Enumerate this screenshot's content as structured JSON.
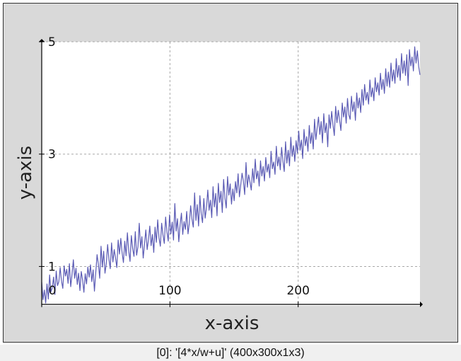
{
  "window": {
    "status_text": "[0]: '[4*x/w+u]' (400x300x1x3)"
  },
  "colors": {
    "series": "#5a5ab4",
    "grid": "#a8a8a8",
    "frame_bg": "#d9d9d9",
    "plot_bg": "#ffffff"
  },
  "chart_data": {
    "type": "line",
    "title": "",
    "xlabel": "x-axis",
    "ylabel": "y-axis",
    "xlim": [
      0,
      295
    ],
    "ylim": [
      0.3,
      5
    ],
    "x_ticks": [
      {
        "value": 0,
        "label": "0"
      },
      {
        "value": 100,
        "label": "100"
      },
      {
        "value": 200,
        "label": "200"
      }
    ],
    "y_ticks": [
      {
        "value": 1,
        "label": "1"
      },
      {
        "value": 3,
        "label": "3"
      },
      {
        "value": 5,
        "label": "5"
      }
    ],
    "grid": true,
    "series": [
      {
        "values": [
          0.72,
          0.41,
          0.58,
          0.35,
          0.69,
          0.42,
          0.85,
          0.55,
          0.62,
          0.81,
          0.5,
          0.92,
          0.66,
          0.73,
          0.98,
          0.74,
          0.61,
          1.01,
          0.83,
          0.95,
          0.7,
          1.05,
          0.64,
          0.86,
          1.12,
          0.79,
          0.97,
          0.68,
          0.88,
          0.57,
          0.91,
          0.76,
          0.54,
          0.87,
          0.69,
          0.99,
          0.81,
          1.03,
          0.73,
          0.94,
          0.56,
          0.89,
          1.21,
          1.04,
          0.79,
          1.36,
          0.99,
          1.27,
          0.88,
          1.05,
          1.39,
          1.13,
          0.96,
          1.42,
          1.08,
          1.3,
          1.15,
          0.98,
          1.47,
          1.22,
          1.5,
          1.24,
          1.07,
          1.45,
          1.19,
          1.6,
          1.28,
          1.09,
          1.55,
          1.32,
          1.18,
          1.62,
          1.2,
          1.35,
          1.77,
          1.33,
          1.53,
          1.15,
          1.4,
          1.65,
          1.3,
          1.48,
          1.72,
          1.37,
          1.57,
          1.25,
          1.7,
          1.43,
          1.83,
          1.51,
          1.36,
          1.77,
          1.56,
          1.41,
          1.88,
          1.62,
          1.45,
          1.92,
          1.58,
          1.79,
          1.47,
          2.12,
          1.63,
          1.85,
          1.44,
          1.74,
          1.95,
          1.57,
          1.8,
          1.66,
          1.98,
          1.58,
          1.77,
          2.08,
          1.84,
          1.7,
          2.31,
          1.82,
          2.1,
          1.72,
          2.26,
          1.94,
          1.78,
          2.21,
          1.86,
          2.05,
          2.36,
          2.0,
          2.18,
          1.87,
          2.42,
          2.06,
          2.3,
          1.9,
          2.48,
          2.14,
          2.34,
          1.96,
          2.55,
          2.22,
          2.04,
          2.6,
          2.27,
          2.47,
          2.11,
          2.38,
          2.17,
          2.51,
          2.31,
          2.65,
          2.24,
          2.45,
          2.66,
          2.52,
          2.28,
          2.85,
          2.41,
          2.63,
          2.5,
          2.36,
          2.74,
          2.49,
          2.91,
          2.56,
          2.7,
          2.43,
          2.88,
          2.61,
          2.78,
          2.52,
          2.94,
          2.68,
          2.82,
          2.58,
          3.05,
          2.74,
          2.86,
          2.64,
          3.14,
          2.79,
          2.95,
          2.72,
          3.12,
          2.88,
          2.69,
          3.22,
          2.84,
          3.07,
          2.79,
          3.3,
          2.96,
          3.15,
          2.87,
          3.24,
          3.02,
          3.41,
          3.07,
          3.25,
          2.92,
          3.44,
          3.15,
          3.31,
          3.05,
          3.51,
          3.19,
          3.38,
          3.09,
          3.62,
          3.26,
          3.47,
          3.66,
          3.35,
          3.58,
          3.2,
          3.72,
          3.38,
          3.55,
          3.13,
          3.7,
          3.46,
          3.76,
          3.52,
          3.33,
          3.85,
          3.56,
          3.78,
          3.6,
          3.42,
          3.91,
          3.66,
          3.84,
          3.55,
          3.99,
          3.7,
          3.62,
          4.03,
          3.76,
          3.93,
          3.6,
          4.09,
          3.82,
          4.0,
          3.74,
          4.15,
          3.87,
          4.24,
          3.96,
          4.1,
          3.89,
          4.32,
          4.02,
          4.18,
          3.95,
          4.36,
          4.11,
          4.27,
          4.05,
          4.44,
          4.15,
          4.33,
          4.08,
          4.52,
          4.21,
          4.46,
          4.19,
          4.62,
          4.3,
          4.5,
          4.26,
          4.7,
          4.37,
          4.58,
          4.31,
          4.79,
          4.44,
          4.66,
          4.4,
          4.77,
          4.22,
          4.86,
          4.57,
          4.73,
          4.48,
          4.91,
          4.62,
          4.84,
          4.56,
          4.41
        ]
      }
    ]
  }
}
